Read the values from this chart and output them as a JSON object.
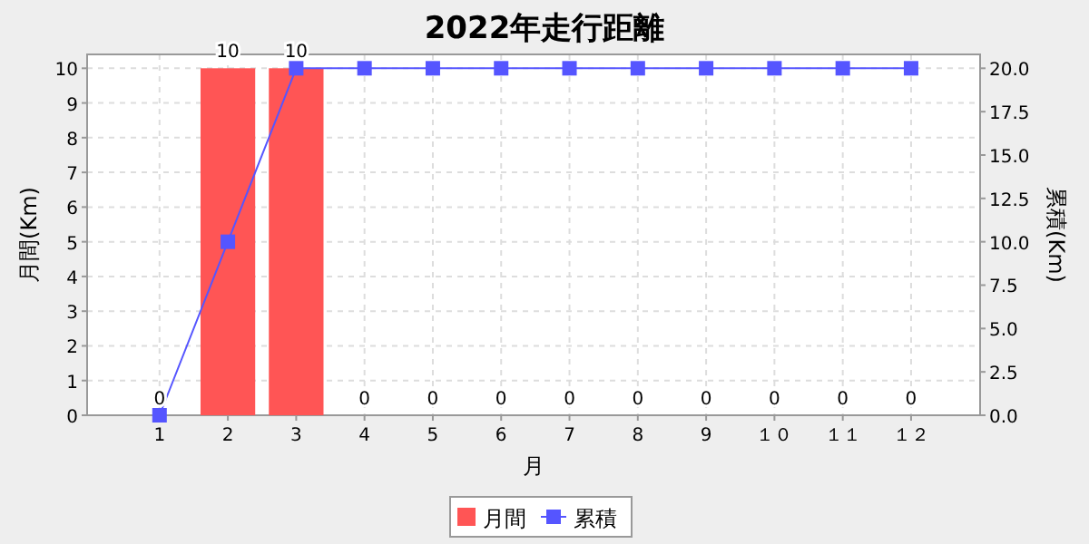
{
  "chart_data": {
    "type": "bar",
    "title": "2022年走行距離",
    "xlabel": "月",
    "ylabel": "月間(Km)",
    "y2label": "累積(Km)",
    "categories": [
      "1",
      "2",
      "3",
      "4",
      "5",
      "6",
      "7",
      "8",
      "9",
      "１０",
      "１１",
      "１２"
    ],
    "series": [
      {
        "name": "月間",
        "color": "#ff5555",
        "values": [
          0,
          10,
          10,
          0,
          0,
          0,
          0,
          0,
          0,
          0,
          0,
          0
        ],
        "value_labels": [
          "0",
          "10",
          "10",
          "0",
          "0",
          "0",
          "0",
          "0",
          "0",
          "0",
          "0",
          "0"
        ]
      },
      {
        "name": "累積",
        "type": "line",
        "axis": "y2",
        "color": "#5555ff",
        "marker": "square",
        "values": [
          0,
          10,
          20,
          20,
          20,
          20,
          20,
          20,
          20,
          20,
          20,
          20
        ]
      }
    ],
    "ylim": [
      0,
      10.4
    ],
    "yticks": [
      0,
      1,
      2,
      3,
      4,
      5,
      6,
      7,
      8,
      9,
      10
    ],
    "y2lim": [
      0,
      20.8
    ],
    "y2ticks": [
      {
        "value": 0,
        "label": "0.0"
      },
      {
        "value": 2.5,
        "label": "2.5"
      },
      {
        "value": 5,
        "label": "5.0"
      },
      {
        "value": 7.5,
        "label": "7.5"
      },
      {
        "value": 10,
        "label": "10.0"
      },
      {
        "value": 12.5,
        "label": "12.5"
      },
      {
        "value": 15,
        "label": "15.0"
      },
      {
        "value": 17.5,
        "label": "17.5"
      },
      {
        "value": 20,
        "label": "20.0"
      }
    ],
    "grid": true,
    "legend": "bottom"
  }
}
